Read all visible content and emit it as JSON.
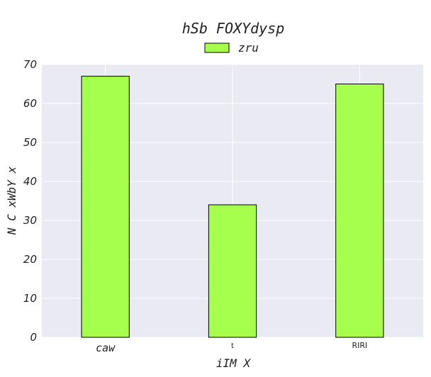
{
  "chart_data": {
    "type": "bar",
    "title": "hSb FOXYdysp",
    "xlabel": "iIM X",
    "ylabel": "N C xWbY   x",
    "categories": [
      "caw",
      "t",
      "RIRI"
    ],
    "series": [
      {
        "name": "zru",
        "values": [
          67,
          34,
          65
        ]
      }
    ],
    "ylim": [
      0,
      70
    ],
    "yticks": [
      0,
      10,
      20,
      30,
      40,
      50,
      60,
      70
    ],
    "grid": true,
    "legend_position": "top-center"
  },
  "colors": {
    "plot_background": "#eaeaf2",
    "bar_fill": "#a6ff4d",
    "bar_edge": "#000000",
    "grid": "#ffffff"
  }
}
